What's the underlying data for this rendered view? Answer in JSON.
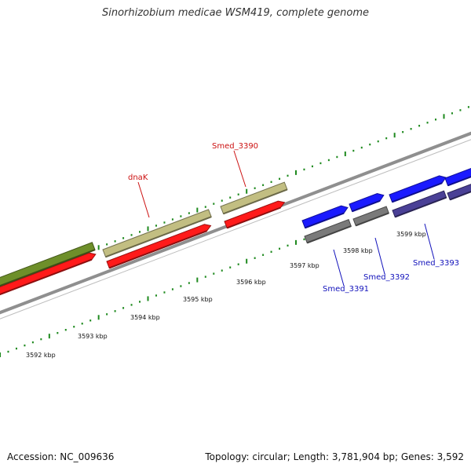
{
  "title": "Sinorhizobium medicae WSM419, complete genome",
  "footer": {
    "accession": "Accession: NC_009636",
    "topology": "Topology: circular; Length: 3,781,904 bp; Genes: 3,592"
  },
  "colors": {
    "tick": "#1e8a1e",
    "backbone": "#8f8f8f",
    "cds_red": "#ff1a1a",
    "gene_olive": "#6e8f2a",
    "gene_khaki": "#c2be82",
    "gene_blue": "#1a1aff",
    "gene_gray": "#7a7a7a",
    "gene_purple": "#4a4096",
    "label_red": "#cc1111",
    "label_blue": "#1111bb"
  },
  "scale_labels": [
    "3592 kbp",
    "3593 kbp",
    "3594 kbp",
    "3595 kbp",
    "3596 kbp",
    "3597 kbp",
    "3598 kbp",
    "3599 kbp"
  ],
  "gene_labels": [
    {
      "id": "dnaK",
      "text": "dnaK",
      "color": "label_red"
    },
    {
      "id": "smed-3390",
      "text": "Smed_3390",
      "color": "label_red"
    },
    {
      "id": "smed-3391",
      "text": "Smed_3391",
      "color": "label_blue"
    },
    {
      "id": "smed-3392",
      "text": "Smed_3392",
      "color": "label_blue"
    },
    {
      "id": "smed-3393",
      "text": "Smed_3393",
      "color": "label_blue"
    }
  ]
}
